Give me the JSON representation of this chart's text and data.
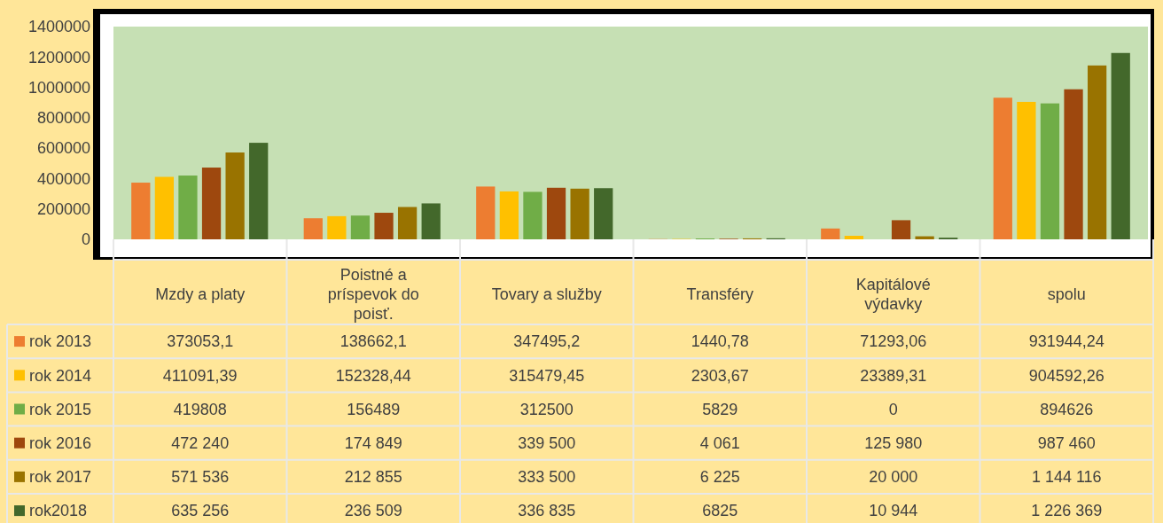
{
  "chart_data": {
    "type": "bar",
    "categories": [
      "Mzdy a platy",
      "Poistné a príspevok do poisť.",
      "Tovary a služby",
      "Transféry",
      "Kapitálové výdavky",
      "spolu"
    ],
    "series": [
      {
        "name": "rok 2013",
        "color": "#ed7d31",
        "values": [
          373053.1,
          138662.1,
          347495.2,
          1440.78,
          71293.06,
          931944.24
        ],
        "value_labels": [
          "373053,1",
          "138662,1",
          "347495,2",
          "1440,78",
          "71293,06",
          "931944,24"
        ]
      },
      {
        "name": "rok 2014",
        "color": "#ffc000",
        "values": [
          411091.39,
          152328.44,
          315479.45,
          2303.67,
          23389.31,
          904592.26
        ],
        "value_labels": [
          "411091,39",
          "152328,44",
          "315479,45",
          "2303,67",
          "23389,31",
          "904592,26"
        ]
      },
      {
        "name": "rok 2015",
        "color": "#70ad47",
        "values": [
          419808,
          156489,
          312500,
          5829,
          0,
          894626
        ],
        "value_labels": [
          "419808",
          "156489",
          "312500",
          "5829",
          "0",
          "894626"
        ]
      },
      {
        "name": "rok 2016",
        "color": "#9e480e",
        "values": [
          472240,
          174849,
          339500,
          4061,
          125980,
          987460
        ],
        "value_labels": [
          "472 240",
          "174 849",
          "339 500",
          "4 061",
          "125 980",
          "987 460"
        ]
      },
      {
        "name": "rok 2017",
        "color": "#997300",
        "values": [
          571536,
          212855,
          333500,
          6225,
          20000,
          1144116
        ],
        "value_labels": [
          "571 536",
          "212 855",
          "333 500",
          "6 225",
          "20 000",
          "1 144 116"
        ]
      },
      {
        "name": "rok2018",
        "color": "#43682b",
        "values": [
          635256,
          236509,
          336835,
          6825,
          10944,
          1226369
        ],
        "value_labels": [
          "635 256",
          "236 509",
          "336 835",
          "6825",
          "10 944",
          "1 226 369"
        ]
      }
    ],
    "ylim": [
      0,
      1400000
    ],
    "yticks": [
      0,
      200000,
      400000,
      600000,
      800000,
      1000000,
      1200000,
      1400000
    ],
    "grid": false,
    "legend": "bottom"
  }
}
